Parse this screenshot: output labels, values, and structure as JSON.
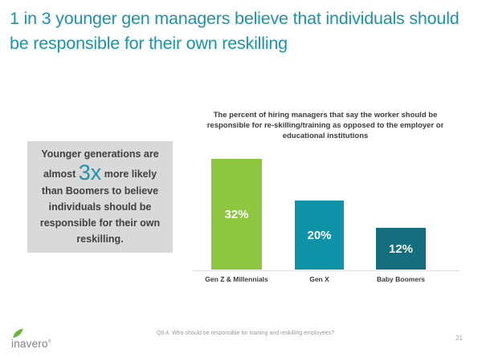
{
  "slide": {
    "title": "1 in 3 younger gen managers believe that individuals should be responsible for their own reskilling",
    "footnote": "Q6.4. Who should be responsible for training and reskilling employees?",
    "page_number": "21",
    "logo_text": "inavero",
    "logo_reg": "®"
  },
  "callout": {
    "text_before": "Younger generations are almost ",
    "highlight": "3x",
    "text_after": " more likely than Boomers to believe individuals should be responsible for their own reskilling."
  },
  "chart_data": {
    "type": "bar",
    "title": "The percent of hiring managers that say the worker should be responsible for re-skilling/training as opposed to the employer or educational institutions",
    "categories": [
      "Gen Z & Millennials",
      "Gen X",
      "Baby Boomers"
    ],
    "values": [
      32,
      20,
      12
    ],
    "value_labels": [
      "32%",
      "20%",
      "12%"
    ],
    "bar_colors": [
      "#8dc63f",
      "#0e93a8",
      "#156e7d"
    ],
    "ylim": [
      0,
      32
    ],
    "grid": false,
    "legend": false,
    "value_label_position": "center-inside",
    "baseline_axis_color": "#dddddd"
  },
  "colors": {
    "title_teal": "#1d92a9",
    "callout_bg": "#d9d9d9",
    "text_dark": "#3f3f3f",
    "logo_gray": "#7e8285",
    "leaf_green": "#6ab43e"
  }
}
